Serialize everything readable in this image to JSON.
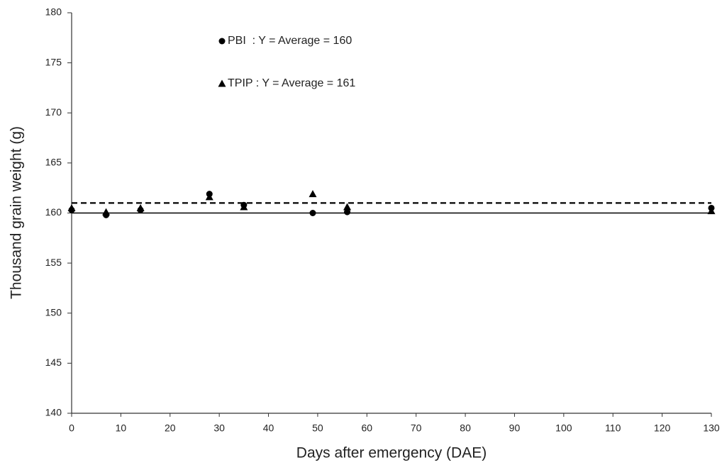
{
  "chart_data": {
    "type": "scatter",
    "xlabel": "Days after emergency (DAE)",
    "ylabel": "Thousand grain weight (g)",
    "xlim": [
      0,
      130
    ],
    "xticks": [
      0,
      10,
      20,
      30,
      40,
      50,
      60,
      70,
      80,
      90,
      100,
      110,
      120,
      130
    ],
    "ylim": [
      140,
      180
    ],
    "yticks": [
      140,
      145,
      150,
      155,
      160,
      165,
      170,
      175,
      180
    ],
    "x": [
      0,
      7,
      14,
      28,
      35,
      49,
      56,
      130
    ],
    "series": [
      {
        "name": "PBI  : Y = Average = 160",
        "marker": "circle",
        "color": "#000000",
        "average": 160,
        "average_style": "solid",
        "values": [
          160.3,
          159.8,
          160.3,
          161.9,
          160.8,
          160.0,
          160.1,
          160.5
        ]
      },
      {
        "name": "TPIP : Y = Average = 161",
        "marker": "triangle",
        "color": "#000000",
        "average": 161,
        "average_style": "dashed",
        "values": [
          160.5,
          160.1,
          160.5,
          161.6,
          160.6,
          161.9,
          160.6,
          160.2
        ]
      }
    ]
  }
}
